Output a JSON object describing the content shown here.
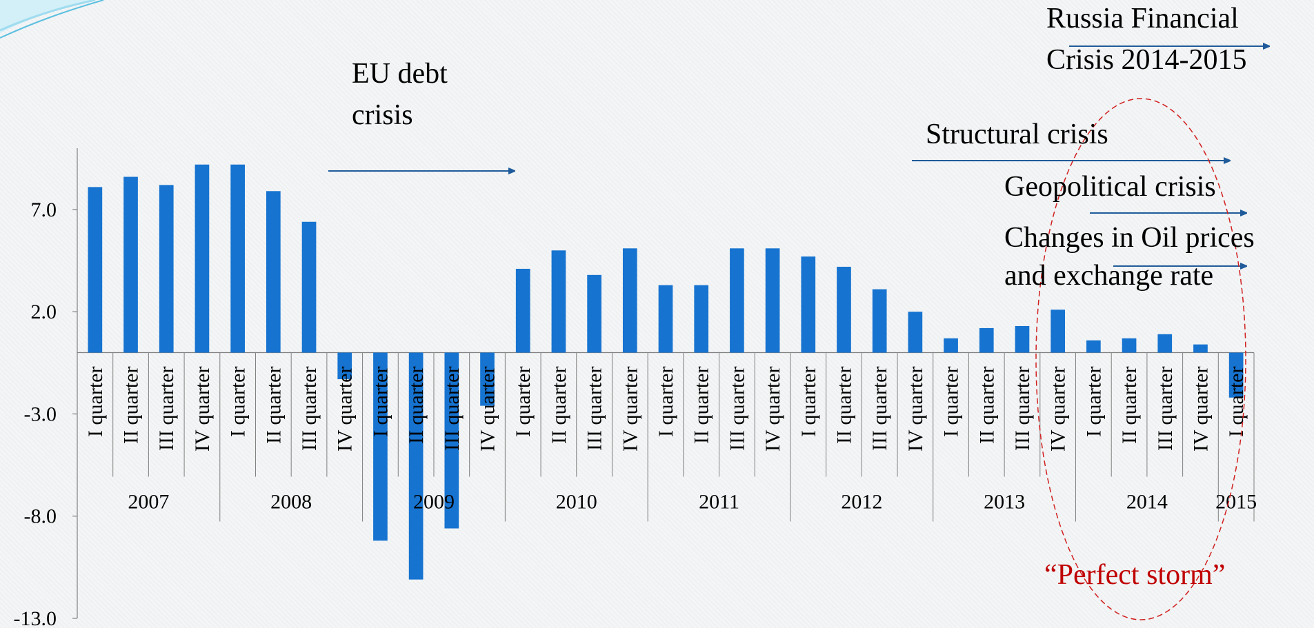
{
  "chart_data": {
    "type": "bar",
    "title": "",
    "xlabel": "",
    "ylabel": "",
    "ylim": [
      -13.0,
      10.0
    ],
    "yticks": [
      "7.0",
      "2.0",
      "-3.0",
      "-8.0",
      "-13.0"
    ],
    "bar_color": "#1673d0",
    "categories": [
      "I quarter",
      "II quarter",
      "III quarter",
      "IV quarter",
      "I quarter",
      "II quarter",
      "III quarter",
      "IV quarter",
      "I quarter",
      "II quarter",
      "III quarter",
      "IV quarter",
      "I quarter",
      "II quarter",
      "III quarter",
      "IV quarter",
      "I quarter",
      "II quarter",
      "III quarter",
      "IV quarter",
      "I quarter",
      "II quarter",
      "III quarter",
      "IV quarter",
      "I quarter",
      "II quarter",
      "III quarter",
      "IV quarter",
      "I quarter",
      "II quarter",
      "III quarter",
      "IV quarter",
      "I quarter"
    ],
    "groups": [
      {
        "label": "2007",
        "count": 4
      },
      {
        "label": "2008",
        "count": 4
      },
      {
        "label": "2009",
        "count": 4
      },
      {
        "label": "2010",
        "count": 4
      },
      {
        "label": "2011",
        "count": 4
      },
      {
        "label": "2012",
        "count": 4
      },
      {
        "label": "2013",
        "count": 4
      },
      {
        "label": "2014",
        "count": 4
      },
      {
        "label": "2015",
        "count": 1
      }
    ],
    "values": [
      8.1,
      8.6,
      8.2,
      9.2,
      9.2,
      7.9,
      6.4,
      -1.3,
      -9.2,
      -11.1,
      -8.6,
      -2.6,
      4.1,
      5.0,
      3.8,
      5.1,
      3.3,
      3.3,
      5.1,
      5.1,
      4.7,
      4.2,
      3.1,
      2.0,
      0.7,
      1.2,
      1.3,
      2.1,
      0.6,
      0.7,
      0.9,
      0.4,
      -2.2
    ],
    "annotations": {
      "eu_debt": "EU debt\ncrisis",
      "russia": "Russia Financial\nCrisis 2014-2015",
      "structural": "Structural crisis",
      "geopolitical": "Geopolitical crisis",
      "oil": "Changes in Oil prices\nand exchange rate",
      "perfect_storm": "“Perfect storm”"
    },
    "highlight_color": "#c00000",
    "arrow_color": "#1f5b9a"
  }
}
